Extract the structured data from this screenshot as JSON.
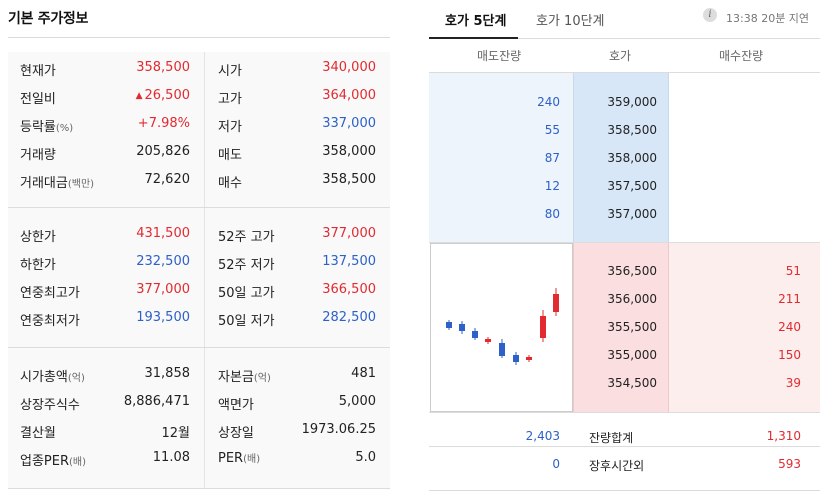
{
  "left": {
    "title": "기본 주가정보",
    "block1": [
      {
        "l1": "현재가",
        "v1": "358,500",
        "c1": "red",
        "l2": "시가",
        "v2": "340,000",
        "c2": "red"
      },
      {
        "l1": "전일비",
        "v1": "26,500",
        "c1": "red",
        "arrow": "▲",
        "l2": "고가",
        "v2": "364,000",
        "c2": "red"
      },
      {
        "l1": "등락률",
        "l1s": "(%)",
        "v1": "+7.98%",
        "c1": "red",
        "l2": "저가",
        "v2": "337,000",
        "c2": "blue"
      },
      {
        "l1": "거래량",
        "v1": "205,826",
        "c1": "",
        "l2": "매도",
        "v2": "358,000",
        "c2": ""
      },
      {
        "l1": "거래대금",
        "l1s": "(백만)",
        "v1": "72,620",
        "c1": "",
        "l2": "매수",
        "v2": "358,500",
        "c2": ""
      }
    ],
    "block2": [
      {
        "l1": "상한가",
        "v1": "431,500",
        "c1": "red",
        "l2": "52주 고가",
        "v2": "377,000",
        "c2": "red"
      },
      {
        "l1": "하한가",
        "v1": "232,500",
        "c1": "blue",
        "l2": "52주 저가",
        "v2": "137,500",
        "c2": "blue"
      },
      {
        "l1": "연중최고가",
        "v1": "377,000",
        "c1": "red",
        "l2": "50일 고가",
        "v2": "366,500",
        "c2": "red"
      },
      {
        "l1": "연중최저가",
        "v1": "193,500",
        "c1": "blue",
        "l2": "50일 저가",
        "v2": "282,500",
        "c2": "blue"
      }
    ],
    "block3": [
      {
        "l1": "시가총액",
        "l1s": "(억)",
        "v1": "31,858",
        "c1": "",
        "l2": "자본금",
        "l2s": "(억)",
        "v2": "481",
        "c2": ""
      },
      {
        "l1": "상장주식수",
        "v1": "8,886,471",
        "c1": "",
        "l2": "액면가",
        "v2": "5,000",
        "c2": ""
      },
      {
        "l1": "결산월",
        "v1": "12월",
        "c1": "",
        "l2": "상장일",
        "v2": "1973.06.25",
        "c2": ""
      },
      {
        "l1": "업종PER",
        "l1s": "(배)",
        "v1": "11.08",
        "c1": "",
        "l2": "PER",
        "l2s": "(배)",
        "v2": "5.0",
        "c2": ""
      }
    ]
  },
  "right": {
    "tab_active": "호가 5단계",
    "tab_inactive": "호가 10단계",
    "info_icon": "i",
    "delay": "13:38 20분 지연",
    "headers": {
      "sell": "매도잔량",
      "price": "호가",
      "buy": "매수잔량"
    },
    "asks": [
      {
        "vol": "240",
        "price": "359,000"
      },
      {
        "vol": "55",
        "price": "358,500"
      },
      {
        "vol": "87",
        "price": "358,000"
      },
      {
        "vol": "12",
        "price": "357,500"
      },
      {
        "vol": "80",
        "price": "357,000"
      }
    ],
    "bids": [
      {
        "price": "356,500",
        "vol": "51"
      },
      {
        "price": "356,000",
        "vol": "211"
      },
      {
        "price": "355,500",
        "vol": "240"
      },
      {
        "price": "355,000",
        "vol": "150"
      },
      {
        "price": "354,500",
        "vol": "39"
      }
    ],
    "footer": [
      {
        "left": "2,403",
        "label": "잔량합계",
        "right": "1,310"
      },
      {
        "left": "0",
        "label": "장후시간외",
        "right": "593"
      }
    ],
    "colors": {
      "up": "#e12b30",
      "down": "#2d61c8"
    }
  }
}
